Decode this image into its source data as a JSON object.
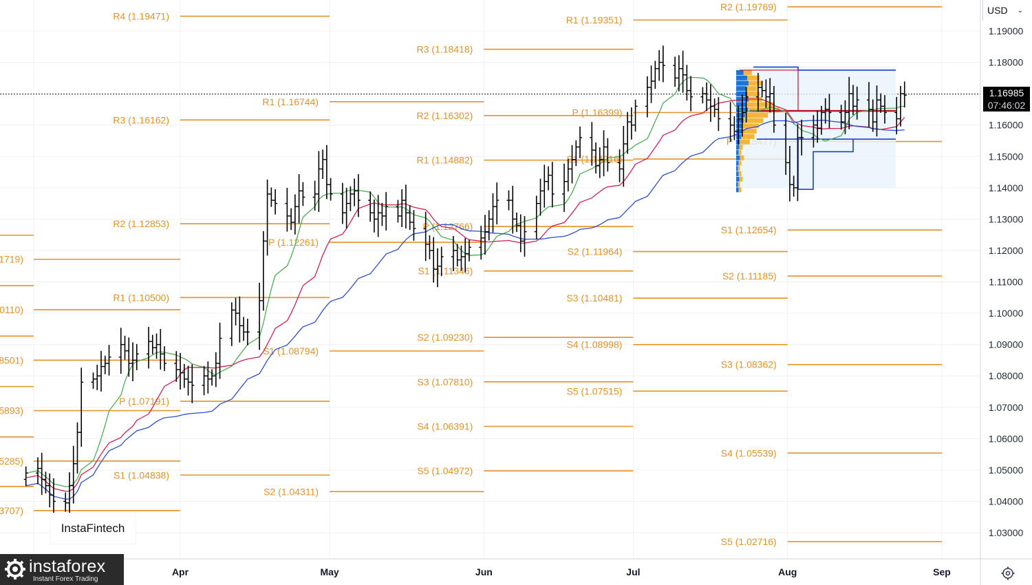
{
  "currency_selector": {
    "label": "USD"
  },
  "current_price": {
    "value": "1.16985",
    "countdown": "07:46:02"
  },
  "watermark": {
    "text": "InstaFintech"
  },
  "logo": {
    "brand": "instaforex",
    "tagline": "Instant Forex Trading"
  },
  "colors": {
    "pivot": "#e69124",
    "ma_fast": "#4caf50",
    "ma_mid": "#d6204f",
    "ma_slow": "#2c4fcf",
    "bars": "#000000"
  },
  "chart_data": {
    "type": "bar",
    "y_range": [
      1.023,
      1.197
    ],
    "y_ticks": [
      "1.19000",
      "1.18000",
      "1.17000",
      "1.16000",
      "1.15000",
      "1.14000",
      "1.13000",
      "1.12000",
      "1.11000",
      "1.10000",
      "1.09000",
      "1.08000",
      "1.07000",
      "1.06000",
      "1.05000",
      "1.04000",
      "1.03000"
    ],
    "months": [
      {
        "label": "Apr",
        "day": 31
      },
      {
        "label": "May",
        "day": 61
      },
      {
        "label": "Jun",
        "day": 92
      },
      {
        "label": "Jul",
        "day": 122
      },
      {
        "label": "Aug",
        "day": 153
      },
      {
        "label": "Sep",
        "day": 184
      }
    ],
    "pivot_levels": [
      {
        "label": "R4 (1.19471)",
        "value": 1.19471,
        "start_day": 31,
        "end_day": 61
      },
      {
        "label": "R3 (1.16162)",
        "value": 1.16162,
        "start_day": 31,
        "end_day": 61
      },
      {
        "label": "R2 (1.12853)",
        "value": 1.12853,
        "start_day": 31,
        "end_day": 61
      },
      {
        "label": "R1 (1.10500)",
        "value": 1.105,
        "start_day": 31,
        "end_day": 61
      },
      {
        "label": "P (1.07191)",
        "value": 1.07191,
        "start_day": 31,
        "end_day": 61
      },
      {
        "label": "S1 (1.04838)",
        "value": 1.04838,
        "start_day": 31,
        "end_day": 61
      },
      {
        "label": "R1 (1.16744)",
        "value": 1.16744,
        "start_day": 61,
        "end_day": 92
      },
      {
        "label": "P (1.12261)",
        "value": 1.12261,
        "start_day": 61,
        "end_day": 92
      },
      {
        "label": "S1 (1.08794)",
        "value": 1.08794,
        "start_day": 61,
        "end_day": 92
      },
      {
        "label": "S2 (1.04311)",
        "value": 1.04311,
        "start_day": 61,
        "end_day": 92
      },
      {
        "label": "R3 (1.18418)",
        "value": 1.18418,
        "start_day": 92,
        "end_day": 122
      },
      {
        "label": "R2 (1.16302)",
        "value": 1.16302,
        "start_day": 92,
        "end_day": 122
      },
      {
        "label": "R1 (1.14882)",
        "value": 1.14882,
        "start_day": 92,
        "end_day": 122
      },
      {
        "label": "P (1.12766)",
        "value": 1.12766,
        "start_day": 92,
        "end_day": 122
      },
      {
        "label": "S1 (1.11346)",
        "value": 1.11346,
        "start_day": 92,
        "end_day": 122
      },
      {
        "label": "S2 (1.09230)",
        "value": 1.0923,
        "start_day": 92,
        "end_day": 122
      },
      {
        "label": "S3 (1.07810)",
        "value": 1.0781,
        "start_day": 92,
        "end_day": 122
      },
      {
        "label": "S4 (1.06391)",
        "value": 1.06391,
        "start_day": 92,
        "end_day": 122
      },
      {
        "label": "S5 (1.04972)",
        "value": 1.04972,
        "start_day": 92,
        "end_day": 122
      },
      {
        "label": "R1 (1.19351)",
        "value": 1.19351,
        "start_day": 122,
        "end_day": 153
      },
      {
        "label": "P (1.16399)",
        "value": 1.16399,
        "start_day": 122,
        "end_day": 153
      },
      {
        "label": "S1 (1.14916)",
        "value": 1.14916,
        "start_day": 122,
        "end_day": 153
      },
      {
        "label": "S2 (1.11964)",
        "value": 1.11964,
        "start_day": 122,
        "end_day": 153
      },
      {
        "label": "S3 (1.10481)",
        "value": 1.10481,
        "start_day": 122,
        "end_day": 153
      },
      {
        "label": "S4 (1.08998)",
        "value": 1.08998,
        "start_day": 122,
        "end_day": 153
      },
      {
        "label": "S5 (1.07515)",
        "value": 1.07515,
        "start_day": 122,
        "end_day": 153
      },
      {
        "label": "R2 (1.19769)",
        "value": 1.19769,
        "start_day": 153,
        "end_day": 184
      },
      {
        "label": "P (1.15477)",
        "value": 1.15477,
        "start_day": 153,
        "end_day": 184
      },
      {
        "label": "S1 (1.12654)",
        "value": 1.12654,
        "start_day": 153,
        "end_day": 184
      },
      {
        "label": "S2 (1.11185)",
        "value": 1.11185,
        "start_day": 153,
        "end_day": 184
      },
      {
        "label": "S3 (1.08362)",
        "value": 1.08362,
        "start_day": 153,
        "end_day": 184
      },
      {
        "label": "S4 (1.05539)",
        "value": 1.05539,
        "start_day": 153,
        "end_day": 184
      },
      {
        "label": "S5 (1.02716)",
        "value": 1.02716,
        "start_day": 153,
        "end_day": 184
      }
    ],
    "left_partial_labels": [
      {
        "label": "1719)",
        "value": 1.11719
      },
      {
        "label": "0110)",
        "value": 1.1011
      },
      {
        "label": "8501)",
        "value": 1.08501
      },
      {
        "label": "5893)",
        "value": 1.06893
      },
      {
        "label": "5285)",
        "value": 1.05285
      },
      {
        "label": "3707)",
        "value": 1.03707
      }
    ],
    "ohlc": {
      "start_day": 0,
      "step_days": 1.0,
      "skip_weekends_from_weekday": 4,
      "closes": [
        1.049,
        1.0505,
        1.047,
        1.045,
        1.042,
        1.04,
        1.0395,
        1.045,
        1.052,
        1.062,
        1.078,
        1.079,
        1.08,
        1.083,
        1.084,
        1.086,
        1.09,
        1.088,
        1.084,
        1.085,
        1.087,
        1.091,
        1.089,
        1.09,
        1.087,
        1.084,
        1.082,
        1.081,
        1.079,
        1.078,
        1.077,
        1.08,
        1.079,
        1.08,
        1.084,
        1.092,
        1.101,
        1.1,
        1.096,
        1.094,
        1.094,
        1.104,
        1.123,
        1.138,
        1.136,
        1.135,
        1.131,
        1.129,
        1.134,
        1.139,
        1.137,
        1.138,
        1.146,
        1.149,
        1.141,
        1.138,
        1.132,
        1.135,
        1.138,
        1.139,
        1.136,
        1.132,
        1.13,
        1.132,
        1.131,
        1.134,
        1.131,
        1.136,
        1.132,
        1.129,
        1.127,
        1.122,
        1.12,
        1.114,
        1.115,
        1.118,
        1.12,
        1.117,
        1.118,
        1.119,
        1.121,
        1.124,
        1.126,
        1.13,
        1.134,
        1.136,
        1.136,
        1.13,
        1.128,
        1.123,
        1.126,
        1.135,
        1.139,
        1.142,
        1.144,
        1.138,
        1.142,
        1.146,
        1.149,
        1.153,
        1.156,
        1.152,
        1.147,
        1.149,
        1.153,
        1.148,
        1.146,
        1.154,
        1.161,
        1.16,
        1.166,
        1.172,
        1.174,
        1.178,
        1.18,
        1.179,
        1.175,
        1.178,
        1.176,
        1.171,
        1.169,
        1.17,
        1.168,
        1.166,
        1.165,
        1.162,
        1.16,
        1.158,
        1.162,
        1.164,
        1.169,
        1.172,
        1.171,
        1.169,
        1.17,
        1.16,
        1.148,
        1.141,
        1.14,
        1.156,
        1.156,
        1.16,
        1.159,
        1.164,
        1.165,
        1.164,
        1.161,
        1.164,
        1.17,
        1.166,
        1.168,
        1.165,
        1.161,
        1.168,
        1.166,
        1.164,
        1.162,
        1.17,
        1.1695
      ]
    },
    "moving_averages": [
      {
        "key": "fast",
        "period": 10
      },
      {
        "key": "mid",
        "period": 20
      },
      {
        "key": "slow",
        "period": 34
      }
    ]
  }
}
